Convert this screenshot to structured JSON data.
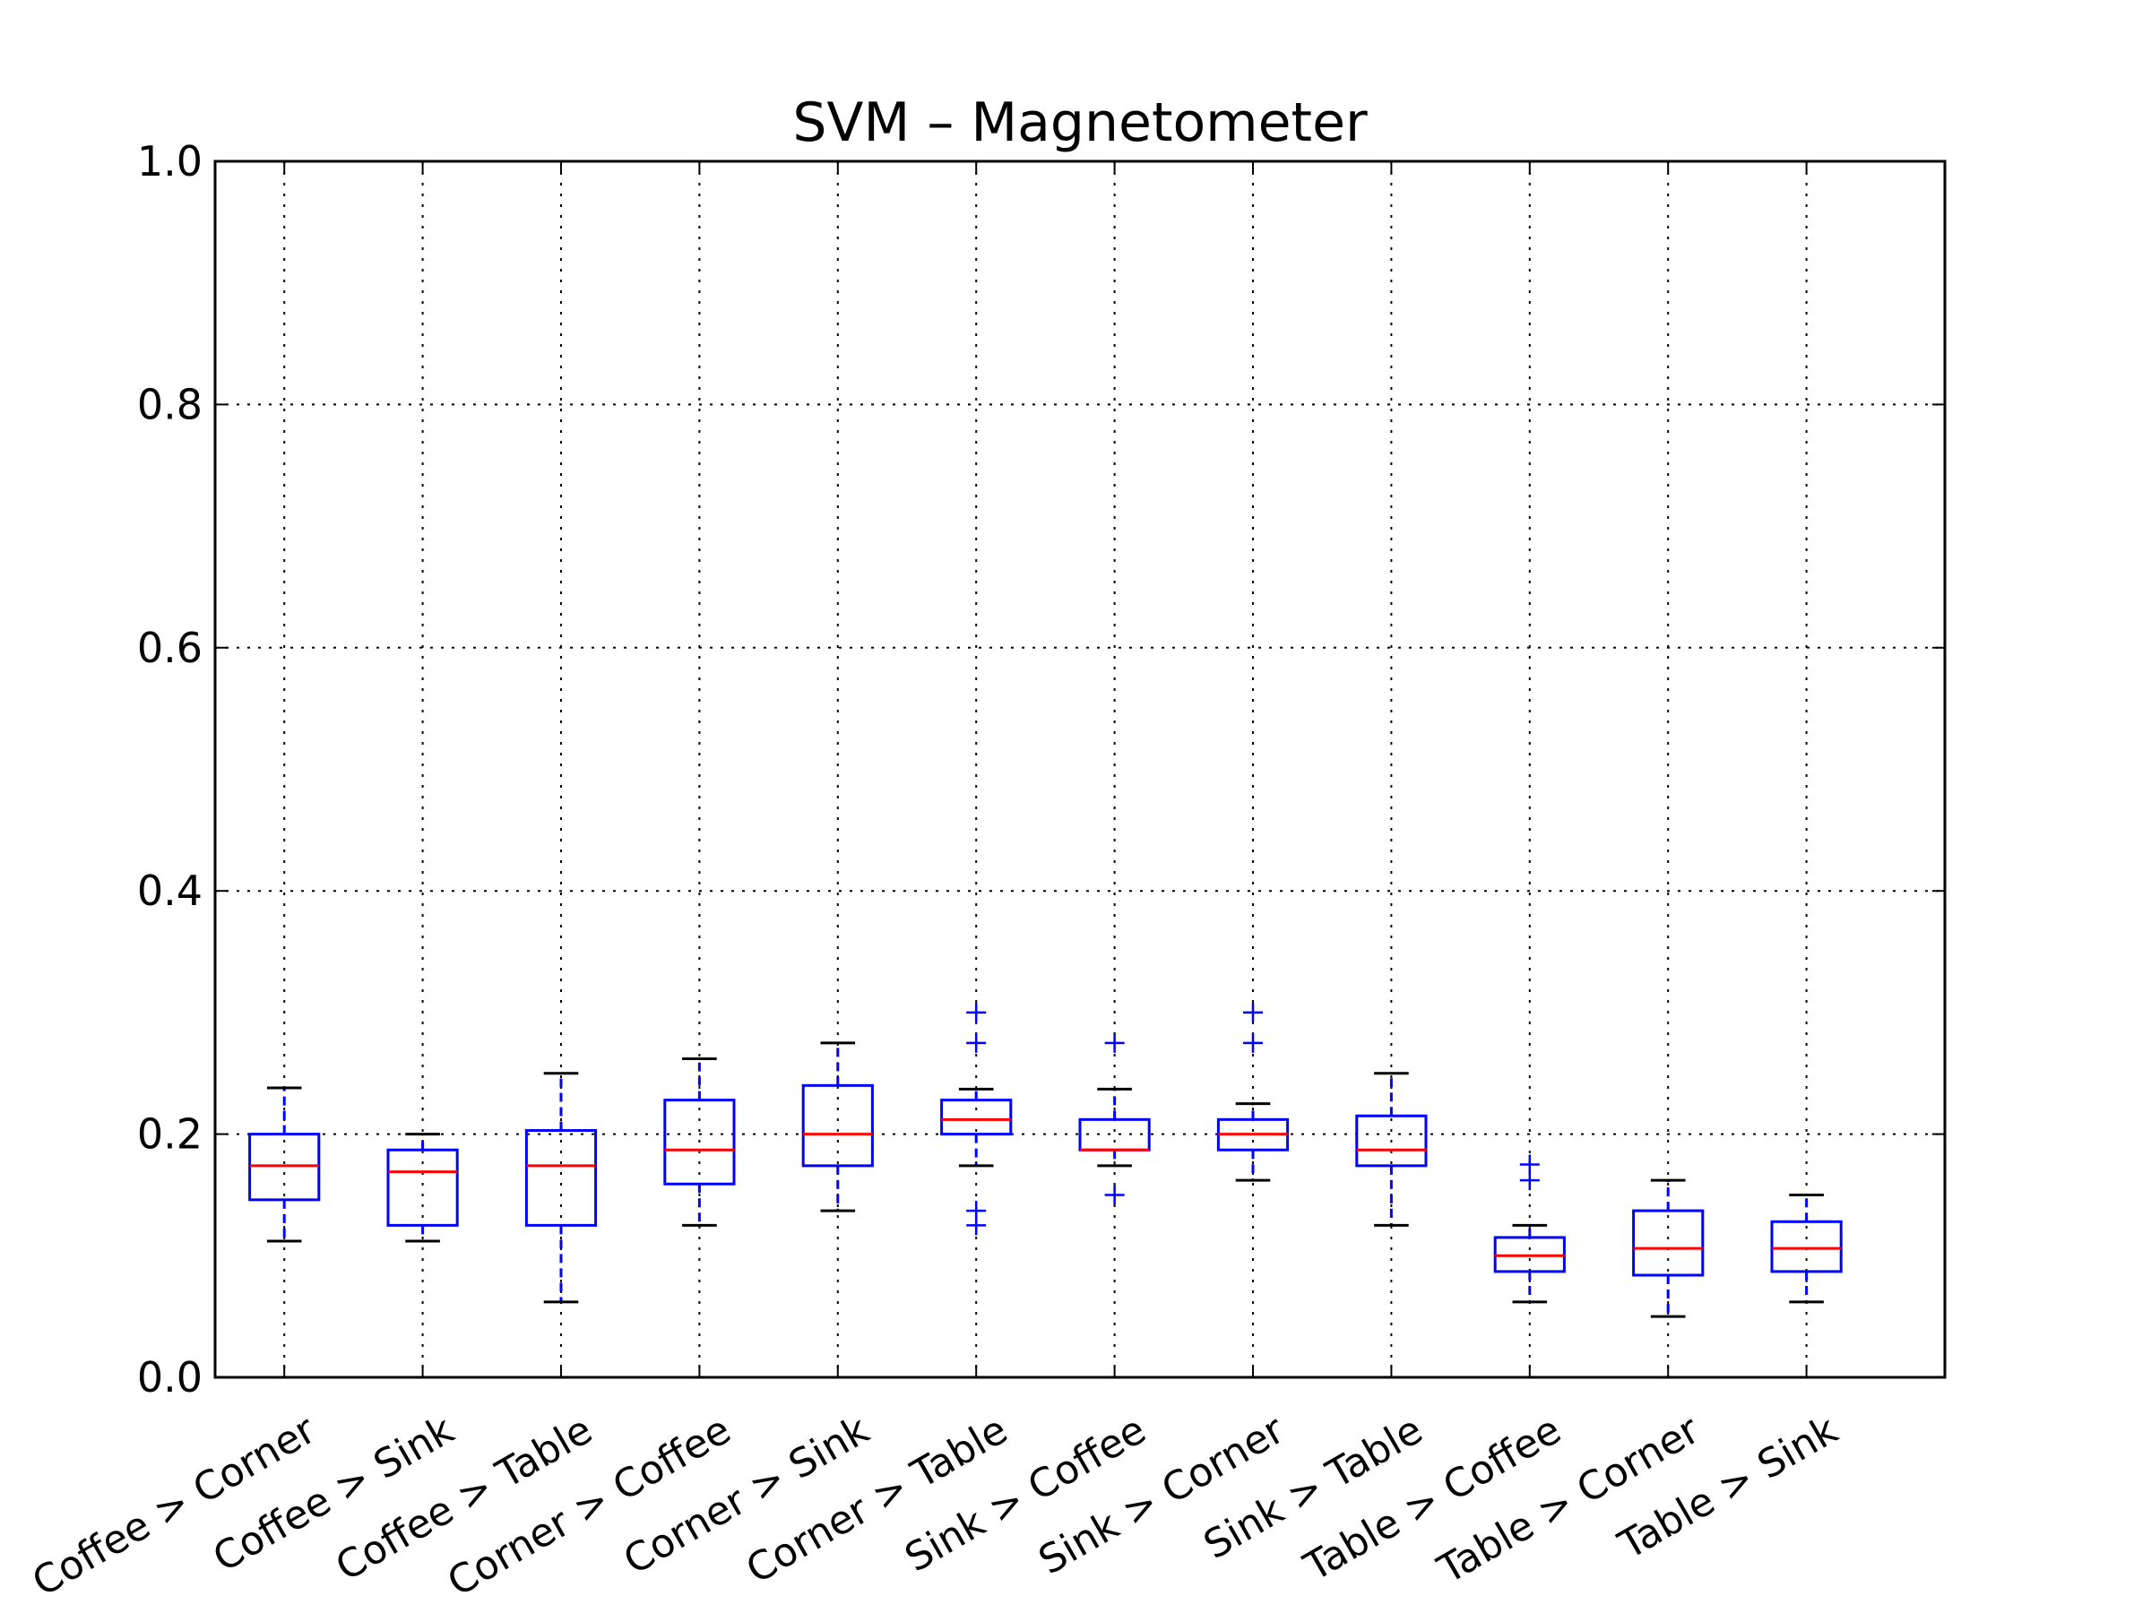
{
  "chart_data": {
    "type": "box",
    "title": "SVM – Magnetometer",
    "xlabel": "",
    "ylabel": "",
    "ylim": [
      0.0,
      1.0
    ],
    "yticks": [
      "0.0",
      "0.2",
      "0.4",
      "0.6",
      "0.8",
      "1.0"
    ],
    "grid": true,
    "colors": {
      "box": "#0000ff",
      "median": "#ff0000",
      "whisker": "#0000ff",
      "cap": "#000000",
      "flier": "#0000ff",
      "grid": "#000000",
      "axes": "#000000"
    },
    "categories": [
      "Coffee > Corner",
      "Coffee > Sink",
      "Coffee > Table",
      "Corner > Coffee",
      "Corner > Sink",
      "Corner > Table",
      "Sink > Coffee",
      "Sink > Corner",
      "Sink > Table",
      "Table > Coffee",
      "Table > Corner",
      "Table > Sink"
    ],
    "boxes": [
      {
        "whislo": 0.112,
        "q1": 0.146,
        "med": 0.174,
        "q3": 0.2,
        "whishi": 0.238,
        "fliers": []
      },
      {
        "whislo": 0.112,
        "q1": 0.125,
        "med": 0.169,
        "q3": 0.187,
        "whishi": 0.2,
        "fliers": []
      },
      {
        "whislo": 0.062,
        "q1": 0.125,
        "med": 0.174,
        "q3": 0.203,
        "whishi": 0.25,
        "fliers": []
      },
      {
        "whislo": 0.125,
        "q1": 0.159,
        "med": 0.187,
        "q3": 0.228,
        "whishi": 0.262,
        "fliers": []
      },
      {
        "whislo": 0.137,
        "q1": 0.174,
        "med": 0.2,
        "q3": 0.24,
        "whishi": 0.275,
        "fliers": []
      },
      {
        "whislo": 0.174,
        "q1": 0.2,
        "med": 0.212,
        "q3": 0.228,
        "whishi": 0.237,
        "fliers": [
          0.125,
          0.137,
          0.275,
          0.3
        ]
      },
      {
        "whislo": 0.174,
        "q1": 0.187,
        "med": 0.187,
        "q3": 0.212,
        "whishi": 0.237,
        "fliers": [
          0.15,
          0.275
        ]
      },
      {
        "whislo": 0.162,
        "q1": 0.187,
        "med": 0.2,
        "q3": 0.212,
        "whishi": 0.225,
        "fliers": [
          0.275,
          0.3
        ]
      },
      {
        "whislo": 0.125,
        "q1": 0.174,
        "med": 0.187,
        "q3": 0.215,
        "whishi": 0.25,
        "fliers": []
      },
      {
        "whislo": 0.062,
        "q1": 0.087,
        "med": 0.1,
        "q3": 0.115,
        "whishi": 0.125,
        "fliers": [
          0.162,
          0.175
        ]
      },
      {
        "whislo": 0.05,
        "q1": 0.084,
        "med": 0.106,
        "q3": 0.137,
        "whishi": 0.162,
        "fliers": []
      },
      {
        "whislo": 0.062,
        "q1": 0.087,
        "med": 0.106,
        "q3": 0.128,
        "whishi": 0.15,
        "fliers": []
      }
    ]
  }
}
